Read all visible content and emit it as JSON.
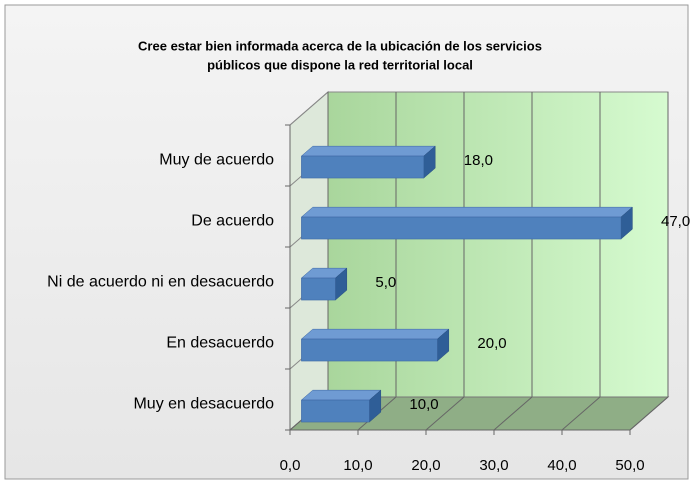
{
  "chart_data": {
    "type": "bar3d_h",
    "title": "Cree estar bien informada acerca de la ubicación de los servicios",
    "subtitle": "públicos que dispone la red territorial local",
    "categories": [
      "Muy de acuerdo",
      "De acuerdo",
      "Ni de acuerdo ni en desacuerdo",
      "En  desacuerdo",
      "Muy en desacuerdo"
    ],
    "values": [
      18,
      47,
      5,
      20,
      10
    ],
    "value_labels": [
      "18,0",
      "47,0",
      "5,0",
      "20,0",
      "10,0"
    ],
    "color": "#4f81bd",
    "xlim": [
      0,
      50
    ],
    "xticks": [
      {
        "value": 0,
        "label": "0,0"
      },
      {
        "value": 10,
        "label": "10,0"
      },
      {
        "value": 20,
        "label": "20,0"
      },
      {
        "value": 30,
        "label": "30,0"
      },
      {
        "value": 40,
        "label": "40,0"
      },
      {
        "value": 50,
        "label": "50,0"
      }
    ],
    "grid": true
  }
}
